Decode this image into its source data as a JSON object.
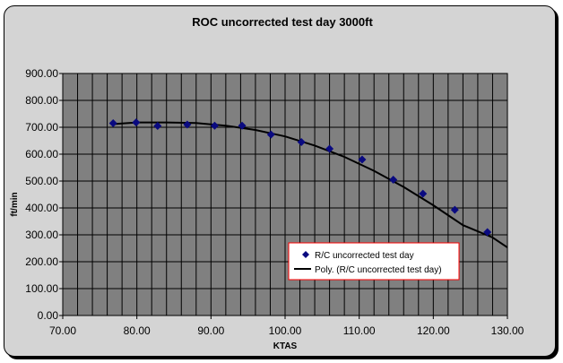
{
  "chart_data": {
    "type": "scatter",
    "title": "ROC uncorrected test day 3000ft",
    "xlabel": "KTAS",
    "ylabel": "ft/min",
    "xlim": [
      70,
      130
    ],
    "ylim": [
      0,
      900
    ],
    "x_ticks": [
      "70.00",
      "80.00",
      "90.00",
      "100.00",
      "110.00",
      "120.00",
      "130.00"
    ],
    "y_ticks": [
      "0.00",
      "100.00",
      "200.00",
      "300.00",
      "400.00",
      "500.00",
      "600.00",
      "700.00",
      "800.00",
      "900.00"
    ],
    "grid": true,
    "legend_position": "bottom-right",
    "colors": {
      "markers": "#0a0a80",
      "trendline": "#000000",
      "plot_area": "#808080",
      "legend_border": "#ff0000"
    },
    "series": [
      {
        "name": "R/C uncorrected test day",
        "kind": "markers",
        "x": [
          76.8,
          79.9,
          82.8,
          86.8,
          90.5,
          94.2,
          98.1,
          102.2,
          106.0,
          110.4,
          114.6,
          118.6,
          122.9,
          127.3
        ],
        "y": [
          715,
          718,
          705,
          710,
          706,
          706,
          673,
          645,
          620,
          580,
          505,
          453,
          393,
          310
        ]
      },
      {
        "name": "Poly. (R/C uncorrected test day)",
        "kind": "trendline",
        "x": [
          76.8,
          80,
          84,
          88,
          92,
          96,
          100,
          104,
          108,
          112,
          116,
          120,
          124,
          128,
          130
        ],
        "y": [
          712,
          718,
          718,
          716,
          706,
          690,
          666,
          632,
          590,
          538,
          478,
          410,
          336,
          290,
          253
        ]
      }
    ]
  }
}
